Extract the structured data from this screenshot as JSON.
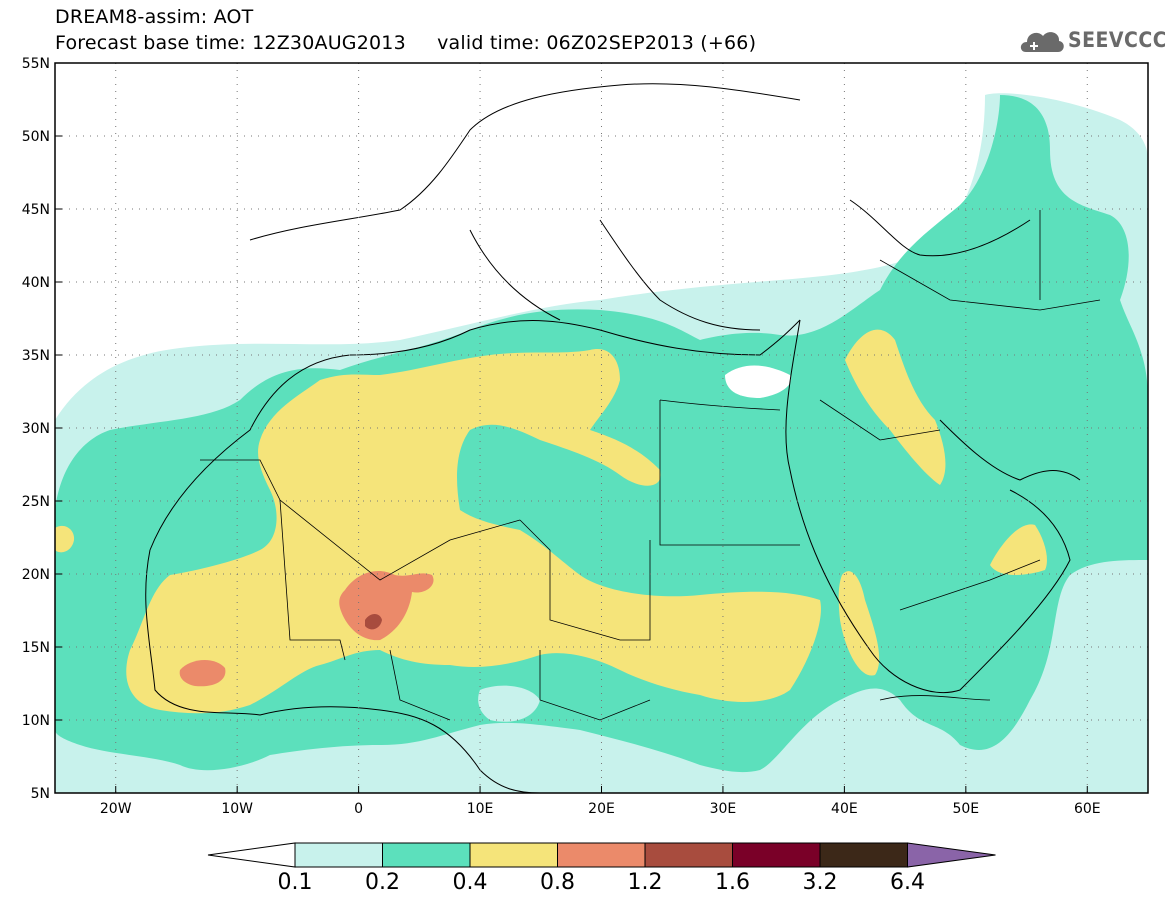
{
  "header": {
    "line1": "DREAM8-assim: AOT",
    "line2": "Forecast base time: 12Z30AUG2013     valid time: 06Z02SEP2013 (+66)"
  },
  "logo": {
    "text": "SEEVCCC",
    "icon": "cloud-logo-icon"
  },
  "map": {
    "lon_range": [
      -25,
      65
    ],
    "lat_range": [
      5,
      55
    ],
    "lat_ticks": [
      "5N",
      "10N",
      "15N",
      "20N",
      "25N",
      "30N",
      "35N",
      "40N",
      "45N",
      "50N",
      "55N"
    ],
    "lon_ticks": [
      "20W",
      "10W",
      "0",
      "10E",
      "20E",
      "30E",
      "40E",
      "50E",
      "60E"
    ]
  },
  "colorbar": {
    "labels": [
      "0.1",
      "0.2",
      "0.4",
      "0.8",
      "1.2",
      "1.6",
      "3.2",
      "6.4"
    ],
    "colors": [
      "#c8f2ec",
      "#5ce0bc",
      "#f5e47a",
      "#eb8a6a",
      "#a84c3e",
      "#7a0028",
      "#3c2818",
      "#8a64a8"
    ],
    "below_color": "#ffffff"
  }
}
